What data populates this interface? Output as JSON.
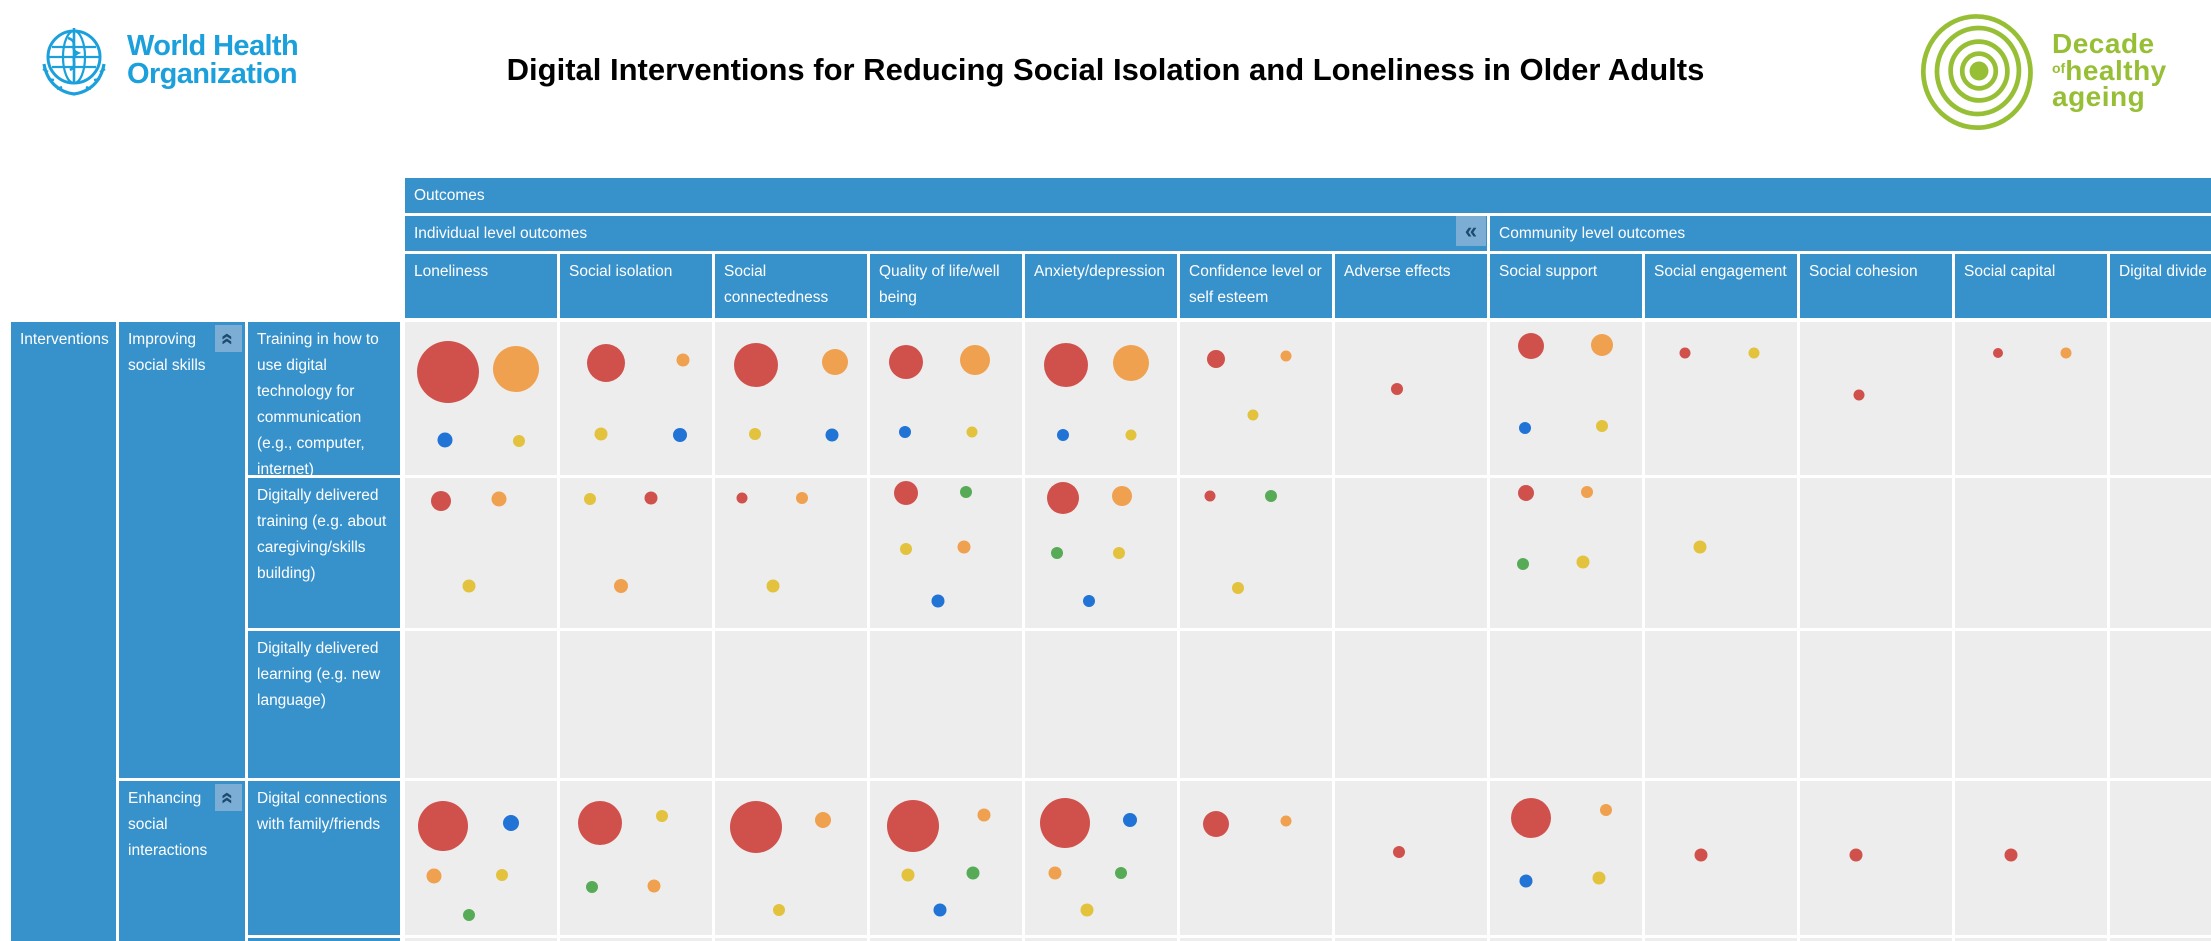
{
  "header": {
    "who_logo": {
      "line1": "World Health",
      "line2": "Organization"
    },
    "title": "Digital Interventions for Reducing Social Isolation and Loneliness in Older Adults",
    "decade_logo": {
      "line1": "Decade",
      "line2_small": "of",
      "line2": "healthy",
      "line3": "ageing"
    }
  },
  "matrix": {
    "outcomes_label": "Outcomes",
    "individual_group_label": "Individual level outcomes",
    "community_group_label": "Community level outcomes",
    "interventions_label": "Interventions",
    "collapse_individual_icon": "«",
    "collapse_group_icon": "«",
    "columns": [
      {
        "id": "loneliness",
        "label": "Loneliness",
        "group": "individual"
      },
      {
        "id": "social_isolation",
        "label": "Social isolation",
        "group": "individual"
      },
      {
        "id": "social_connectedness",
        "label": "Social connectedness",
        "group": "individual"
      },
      {
        "id": "qol",
        "label": "Quality of life/well being",
        "group": "individual"
      },
      {
        "id": "anxiety",
        "label": "Anxiety/depression",
        "group": "individual"
      },
      {
        "id": "confidence",
        "label": "Confidence level or self esteem",
        "group": "individual"
      },
      {
        "id": "adverse",
        "label": "Adverse effects",
        "group": "individual"
      },
      {
        "id": "support",
        "label": "Social support",
        "group": "community"
      },
      {
        "id": "engagement",
        "label": "Social engagement",
        "group": "community"
      },
      {
        "id": "cohesion",
        "label": "Social cohesion",
        "group": "community"
      },
      {
        "id": "capital",
        "label": "Social capital",
        "group": "community"
      },
      {
        "id": "divide",
        "label": "Digital divide",
        "group": "community"
      }
    ],
    "row_groups": [
      {
        "label": "Improving social skills",
        "rows": [
          {
            "id": "r1",
            "label": "Training in how to use digital technology for communication (e.g., computer, internet)"
          },
          {
            "id": "r2",
            "label": "Digitally delivered training (e.g. about caregiving/skills building)"
          },
          {
            "id": "r3",
            "label": "Digitally delivered learning (e.g. new language)"
          }
        ]
      },
      {
        "label": "Enhancing social interactions",
        "rows": [
          {
            "id": "r4",
            "label": "Digital connections with family/friends"
          },
          {
            "id": "r5",
            "label": ""
          }
        ]
      }
    ]
  },
  "chart_data": {
    "type": "bubble-matrix",
    "title": "Digital Interventions for Reducing Social Isolation and Loneliness in Older Adults",
    "x_dimension": "Outcomes",
    "y_dimension": "Interventions",
    "column_labels": [
      "Loneliness",
      "Social isolation",
      "Social connectedness",
      "Quality of life/well being",
      "Anxiety/depression",
      "Confidence level or self esteem",
      "Adverse effects",
      "Social support",
      "Social engagement",
      "Social cohesion",
      "Social capital",
      "Digital divide"
    ],
    "row_labels": [
      "Training in how to use digital technology for communication (e.g., computer, internet)",
      "Digitally delivered training (e.g. about caregiving/skills building)",
      "Digitally delivered learning (e.g. new language)",
      "Digital connections with family/friends"
    ],
    "bubble_colors": {
      "red": "#d0514c",
      "orange": "#efa14f",
      "yellow": "#e3c23d",
      "blue": "#2173d6",
      "green": "#57ab57"
    },
    "cells": {
      "r1": {
        "loneliness": [
          {
            "color": "red",
            "d": 62,
            "x": 28,
            "y": 33
          },
          {
            "color": "orange",
            "d": 46,
            "x": 73,
            "y": 31
          },
          {
            "color": "blue",
            "d": 15,
            "x": 26,
            "y": 77
          },
          {
            "color": "yellow",
            "d": 12,
            "x": 75,
            "y": 78
          }
        ],
        "social_isolation": [
          {
            "color": "red",
            "d": 38,
            "x": 30,
            "y": 27
          },
          {
            "color": "orange",
            "d": 13,
            "x": 81,
            "y": 25
          },
          {
            "color": "yellow",
            "d": 13,
            "x": 27,
            "y": 73
          },
          {
            "color": "blue",
            "d": 14,
            "x": 79,
            "y": 74
          }
        ],
        "social_connectedness": [
          {
            "color": "red",
            "d": 44,
            "x": 27,
            "y": 28
          },
          {
            "color": "orange",
            "d": 26,
            "x": 79,
            "y": 26
          },
          {
            "color": "yellow",
            "d": 12,
            "x": 26,
            "y": 73
          },
          {
            "color": "blue",
            "d": 13,
            "x": 77,
            "y": 74
          }
        ],
        "qol": [
          {
            "color": "red",
            "d": 34,
            "x": 24,
            "y": 26
          },
          {
            "color": "orange",
            "d": 30,
            "x": 69,
            "y": 25
          },
          {
            "color": "blue",
            "d": 12,
            "x": 23,
            "y": 72
          },
          {
            "color": "yellow",
            "d": 11,
            "x": 67,
            "y": 72
          }
        ],
        "anxiety": [
          {
            "color": "red",
            "d": 44,
            "x": 27,
            "y": 28
          },
          {
            "color": "orange",
            "d": 36,
            "x": 70,
            "y": 27
          },
          {
            "color": "blue",
            "d": 12,
            "x": 25,
            "y": 74
          },
          {
            "color": "yellow",
            "d": 11,
            "x": 70,
            "y": 74
          }
        ],
        "confidence": [
          {
            "color": "red",
            "d": 18,
            "x": 24,
            "y": 24
          },
          {
            "color": "orange",
            "d": 11,
            "x": 70,
            "y": 22
          },
          {
            "color": "yellow",
            "d": 11,
            "x": 48,
            "y": 61
          }
        ],
        "adverse": [
          {
            "color": "red",
            "d": 12,
            "x": 41,
            "y": 44
          }
        ],
        "support": [
          {
            "color": "red",
            "d": 26,
            "x": 27,
            "y": 16
          },
          {
            "color": "orange",
            "d": 22,
            "x": 74,
            "y": 15
          },
          {
            "color": "blue",
            "d": 12,
            "x": 23,
            "y": 69
          },
          {
            "color": "yellow",
            "d": 12,
            "x": 74,
            "y": 68
          }
        ],
        "engagement": [
          {
            "color": "red",
            "d": 11,
            "x": 26,
            "y": 20
          },
          {
            "color": "yellow",
            "d": 11,
            "x": 72,
            "y": 20
          }
        ],
        "cohesion": [
          {
            "color": "red",
            "d": 11,
            "x": 39,
            "y": 48
          }
        ],
        "capital": [
          {
            "color": "red",
            "d": 10,
            "x": 28,
            "y": 20
          },
          {
            "color": "orange",
            "d": 11,
            "x": 73,
            "y": 20
          }
        ]
      },
      "r2": {
        "loneliness": [
          {
            "color": "red",
            "d": 20,
            "x": 24,
            "y": 15
          },
          {
            "color": "orange",
            "d": 15,
            "x": 62,
            "y": 14
          },
          {
            "color": "yellow",
            "d": 13,
            "x": 42,
            "y": 72
          }
        ],
        "social_isolation": [
          {
            "color": "yellow",
            "d": 12,
            "x": 20,
            "y": 14
          },
          {
            "color": "red",
            "d": 13,
            "x": 60,
            "y": 13
          },
          {
            "color": "orange",
            "d": 14,
            "x": 40,
            "y": 72
          }
        ],
        "social_connectedness": [
          {
            "color": "red",
            "d": 11,
            "x": 18,
            "y": 13
          },
          {
            "color": "orange",
            "d": 12,
            "x": 57,
            "y": 13
          },
          {
            "color": "yellow",
            "d": 13,
            "x": 38,
            "y": 72
          }
        ],
        "qol": [
          {
            "color": "red",
            "d": 24,
            "x": 24,
            "y": 10
          },
          {
            "color": "green",
            "d": 12,
            "x": 63,
            "y": 9
          },
          {
            "color": "yellow",
            "d": 12,
            "x": 24,
            "y": 47
          },
          {
            "color": "orange",
            "d": 13,
            "x": 62,
            "y": 46
          },
          {
            "color": "blue",
            "d": 13,
            "x": 45,
            "y": 82
          }
        ],
        "anxiety": [
          {
            "color": "red",
            "d": 32,
            "x": 25,
            "y": 13
          },
          {
            "color": "orange",
            "d": 20,
            "x": 64,
            "y": 12
          },
          {
            "color": "green",
            "d": 12,
            "x": 21,
            "y": 50
          },
          {
            "color": "yellow",
            "d": 12,
            "x": 62,
            "y": 50
          },
          {
            "color": "blue",
            "d": 12,
            "x": 42,
            "y": 82
          }
        ],
        "confidence": [
          {
            "color": "red",
            "d": 11,
            "x": 20,
            "y": 12
          },
          {
            "color": "green",
            "d": 12,
            "x": 60,
            "y": 12
          },
          {
            "color": "yellow",
            "d": 12,
            "x": 38,
            "y": 73
          }
        ],
        "support": [
          {
            "color": "red",
            "d": 16,
            "x": 24,
            "y": 10
          },
          {
            "color": "orange",
            "d": 12,
            "x": 64,
            "y": 9
          },
          {
            "color": "green",
            "d": 12,
            "x": 22,
            "y": 57
          },
          {
            "color": "yellow",
            "d": 13,
            "x": 61,
            "y": 56
          }
        ],
        "engagement": [
          {
            "color": "yellow",
            "d": 13,
            "x": 36,
            "y": 46
          }
        ]
      },
      "r3": {},
      "r4": {
        "loneliness": [
          {
            "color": "red",
            "d": 50,
            "x": 25,
            "y": 29
          },
          {
            "color": "blue",
            "d": 16,
            "x": 70,
            "y": 27
          },
          {
            "color": "orange",
            "d": 15,
            "x": 19,
            "y": 62
          },
          {
            "color": "yellow",
            "d": 12,
            "x": 64,
            "y": 61
          },
          {
            "color": "green",
            "d": 12,
            "x": 42,
            "y": 87
          }
        ],
        "social_isolation": [
          {
            "color": "red",
            "d": 44,
            "x": 26,
            "y": 27
          },
          {
            "color": "yellow",
            "d": 12,
            "x": 67,
            "y": 23
          },
          {
            "color": "green",
            "d": 12,
            "x": 21,
            "y": 69
          },
          {
            "color": "orange",
            "d": 13,
            "x": 62,
            "y": 68
          }
        ],
        "social_connectedness": [
          {
            "color": "red",
            "d": 52,
            "x": 27,
            "y": 30
          },
          {
            "color": "orange",
            "d": 16,
            "x": 71,
            "y": 25
          },
          {
            "color": "yellow",
            "d": 12,
            "x": 42,
            "y": 84
          }
        ],
        "qol": [
          {
            "color": "red",
            "d": 52,
            "x": 28,
            "y": 29
          },
          {
            "color": "orange",
            "d": 13,
            "x": 75,
            "y": 22
          },
          {
            "color": "yellow",
            "d": 13,
            "x": 25,
            "y": 61
          },
          {
            "color": "green",
            "d": 13,
            "x": 68,
            "y": 60
          },
          {
            "color": "blue",
            "d": 13,
            "x": 46,
            "y": 84
          }
        ],
        "anxiety": [
          {
            "color": "red",
            "d": 50,
            "x": 26,
            "y": 27
          },
          {
            "color": "blue",
            "d": 14,
            "x": 69,
            "y": 25
          },
          {
            "color": "orange",
            "d": 13,
            "x": 20,
            "y": 60
          },
          {
            "color": "green",
            "d": 12,
            "x": 63,
            "y": 60
          },
          {
            "color": "yellow",
            "d": 13,
            "x": 41,
            "y": 84
          }
        ],
        "confidence": [
          {
            "color": "red",
            "d": 26,
            "x": 24,
            "y": 28
          },
          {
            "color": "orange",
            "d": 11,
            "x": 70,
            "y": 26
          }
        ],
        "adverse": [
          {
            "color": "red",
            "d": 12,
            "x": 42,
            "y": 46
          }
        ],
        "support": [
          {
            "color": "red",
            "d": 40,
            "x": 27,
            "y": 24
          },
          {
            "color": "orange",
            "d": 12,
            "x": 76,
            "y": 19
          },
          {
            "color": "blue",
            "d": 13,
            "x": 24,
            "y": 65
          },
          {
            "color": "yellow",
            "d": 13,
            "x": 72,
            "y": 63
          }
        ],
        "engagement": [
          {
            "color": "red",
            "d": 13,
            "x": 37,
            "y": 48
          }
        ],
        "cohesion": [
          {
            "color": "red",
            "d": 13,
            "x": 37,
            "y": 48
          }
        ],
        "capital": [
          {
            "color": "red",
            "d": 13,
            "x": 37,
            "y": 48
          }
        ]
      },
      "r5": {}
    }
  },
  "colors": {
    "header_blue": "#3791cb",
    "cell_background": "#ededed",
    "collapse_button_background": "#7badd5",
    "collapse_glyph": "#1d4a6e",
    "who_blue": "#1ca0dc",
    "decade_green": "#97bf36"
  }
}
